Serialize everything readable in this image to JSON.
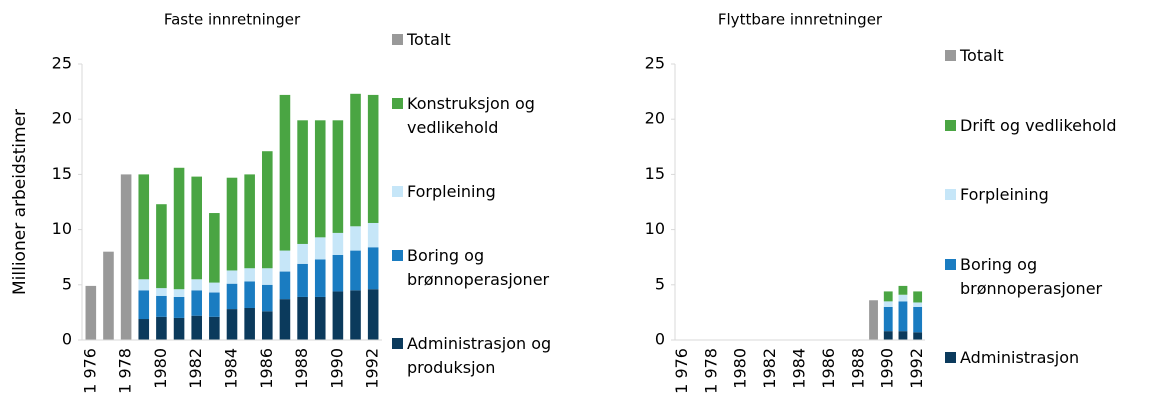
{
  "chart_data": [
    {
      "type": "bar",
      "stacked": true,
      "title": "Faste innretninger",
      "y_label": "Millioner arbeidstimer",
      "categories": [
        "1 976",
        null,
        "1 978",
        null,
        "1980",
        null,
        "1982",
        null,
        "1984",
        null,
        "1986",
        null,
        "1988",
        null,
        "1990",
        null,
        "1992"
      ],
      "series": [
        {
          "name": "Totalt",
          "color": "#999999",
          "values": [
            4.9,
            8.0,
            15.0,
            null,
            null,
            null,
            null,
            null,
            null,
            null,
            null,
            null,
            null,
            null,
            null,
            null,
            null
          ]
        },
        {
          "name": "Konstruksjon og vedlikehold",
          "color": "#4aa543",
          "values": [
            null,
            null,
            null,
            9.5,
            7.6,
            11.0,
            9.3,
            6.3,
            8.4,
            8.5,
            10.6,
            14.1,
            11.2,
            10.6,
            10.2,
            12.0,
            11.6
          ]
        },
        {
          "name": "Forpleining",
          "color": "#c6e6f8",
          "values": [
            null,
            null,
            null,
            1.0,
            0.7,
            0.7,
            1.0,
            0.9,
            1.2,
            1.2,
            1.5,
            1.9,
            1.8,
            2.0,
            2.0,
            2.2,
            2.2
          ]
        },
        {
          "name": "Boring og brønnoperasjoner",
          "color": "#1a7cc1",
          "values": [
            null,
            null,
            null,
            2.6,
            1.9,
            1.9,
            2.3,
            2.2,
            2.3,
            2.4,
            2.4,
            2.5,
            3.0,
            3.4,
            3.3,
            3.6,
            3.8
          ]
        },
        {
          "name": "Administrasjon og produksjon",
          "color": "#0b3a5c",
          "values": [
            null,
            null,
            null,
            1.9,
            2.1,
            2.0,
            2.2,
            2.1,
            2.8,
            2.9,
            2.6,
            3.7,
            3.9,
            3.9,
            4.4,
            4.5,
            4.6
          ]
        }
      ],
      "ylim": [
        0,
        25
      ],
      "yticks": [
        0,
        5,
        10,
        15,
        20,
        25
      ]
    },
    {
      "type": "bar",
      "stacked": true,
      "title": "Flyttbare innretninger",
      "categories": [
        "1 976",
        null,
        "1 978",
        null,
        "1980",
        null,
        "1982",
        null,
        "1984",
        null,
        "1986",
        null,
        "1988",
        null,
        "1990",
        null,
        "1992"
      ],
      "series": [
        {
          "name": "Totalt",
          "color": "#999999",
          "values": [
            null,
            null,
            null,
            null,
            null,
            null,
            null,
            null,
            null,
            null,
            null,
            null,
            null,
            3.6,
            null,
            null,
            null
          ]
        },
        {
          "name": "Drift og vedlikehold",
          "color": "#4aa543",
          "values": [
            null,
            null,
            null,
            null,
            null,
            null,
            null,
            null,
            null,
            null,
            null,
            null,
            null,
            null,
            0.9,
            0.8,
            1.0
          ]
        },
        {
          "name": "Forpleining",
          "color": "#c6e6f8",
          "values": [
            null,
            null,
            null,
            null,
            null,
            null,
            null,
            null,
            null,
            null,
            null,
            null,
            null,
            null,
            0.5,
            0.6,
            0.4
          ]
        },
        {
          "name": "Boring og brønnoperasjoner",
          "color": "#1a7cc1",
          "values": [
            null,
            null,
            null,
            null,
            null,
            null,
            null,
            null,
            null,
            null,
            null,
            null,
            null,
            null,
            2.2,
            2.7,
            2.3
          ]
        },
        {
          "name": "Administrasjon",
          "color": "#0b3a5c",
          "values": [
            null,
            null,
            null,
            null,
            null,
            null,
            null,
            null,
            null,
            null,
            null,
            null,
            null,
            null,
            0.8,
            0.8,
            0.7
          ]
        }
      ],
      "ylim": [
        0,
        25
      ],
      "yticks": [
        0,
        5,
        10,
        15,
        20,
        25
      ]
    }
  ]
}
